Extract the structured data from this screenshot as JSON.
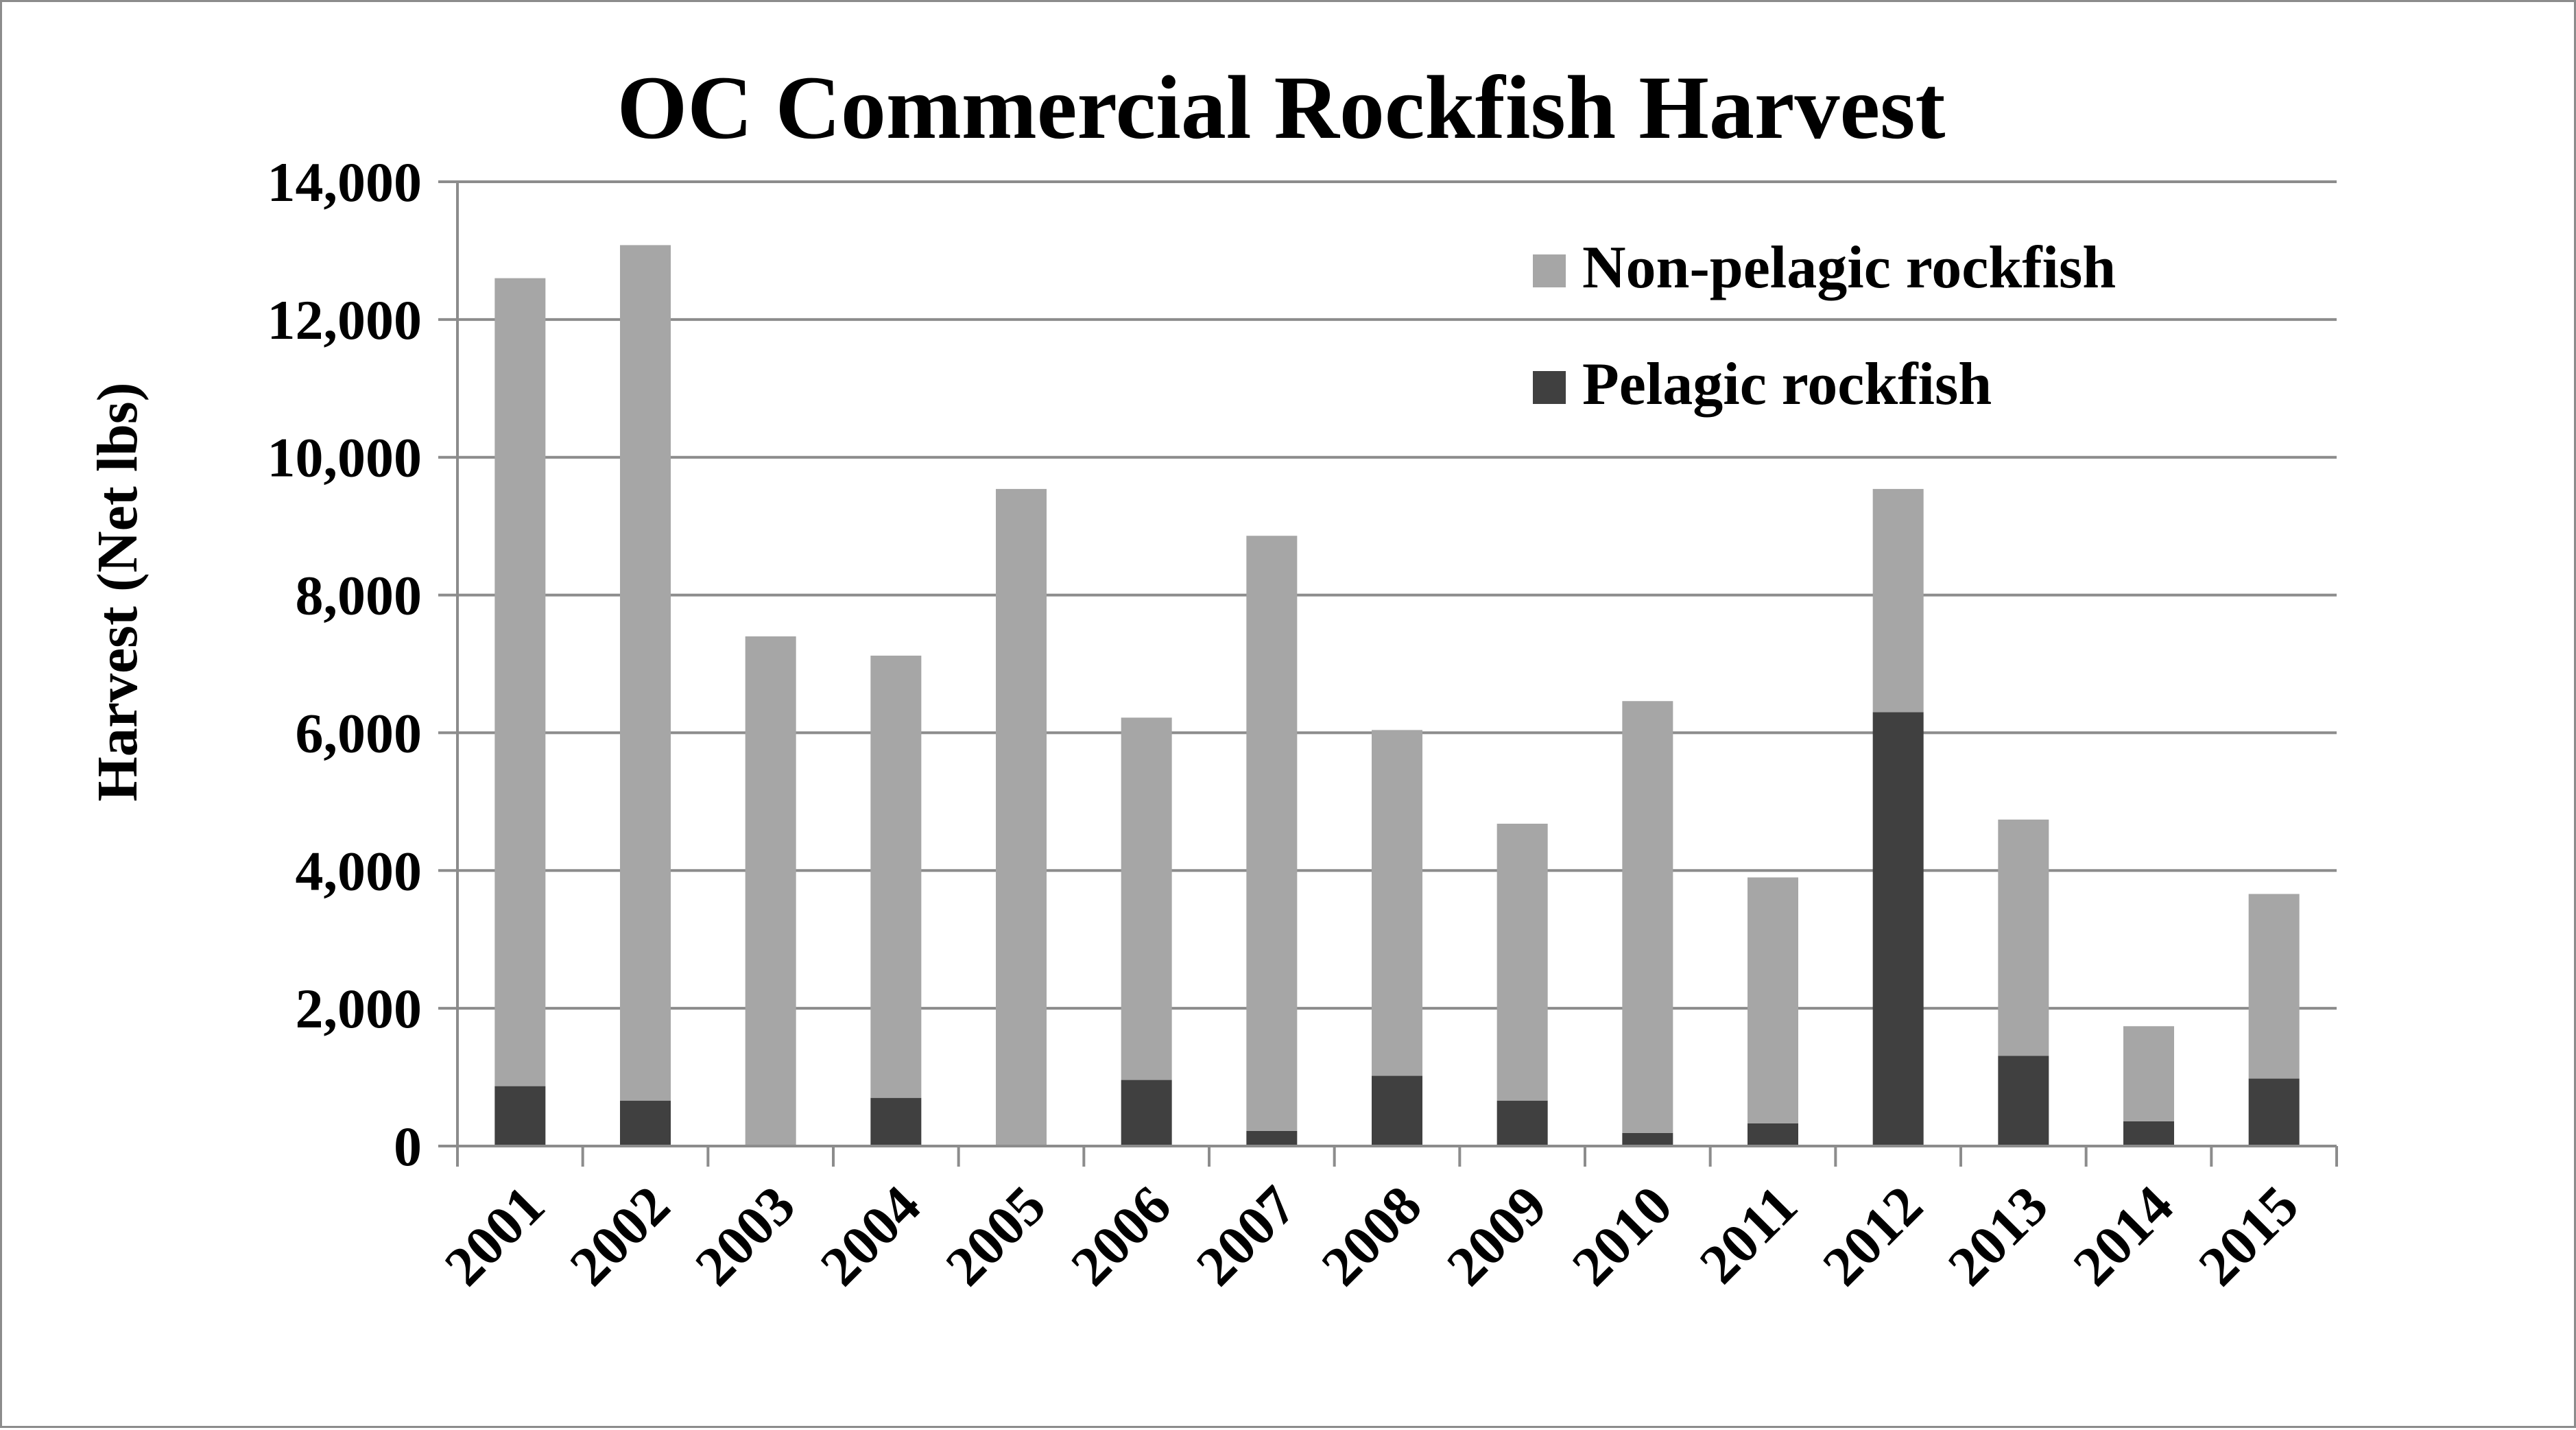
{
  "chart_data": {
    "type": "bar",
    "stacked": true,
    "title": "OC Commercial Rockfish Harvest",
    "xlabel": "",
    "ylabel": "Harvest (Net lbs)",
    "ylim": [
      0,
      14000
    ],
    "yticks": [
      "0",
      "2,000",
      "4,000",
      "6,000",
      "8,000",
      "10,000",
      "12,000",
      "14,000"
    ],
    "ytick_values": [
      0,
      2000,
      4000,
      6000,
      8000,
      10000,
      12000,
      14000
    ],
    "grid": true,
    "legend_position": "top-right",
    "categories": [
      "2001",
      "2002",
      "2003",
      "2004",
      "2005",
      "2006",
      "2007",
      "2008",
      "2009",
      "2010",
      "2011",
      "2012",
      "2013",
      "2014",
      "2015"
    ],
    "series": [
      {
        "name": "Pelagic rockfish",
        "color": "#404040",
        "values": [
          870,
          660,
          0,
          700,
          0,
          960,
          220,
          1020,
          660,
          190,
          330,
          6300,
          1310,
          360,
          980
        ]
      },
      {
        "name": "Non-pelagic rockfish",
        "color": "#a6a6a6",
        "values": [
          11730,
          12420,
          7400,
          6420,
          9540,
          5260,
          8640,
          5020,
          4020,
          6270,
          3570,
          3240,
          3430,
          1380,
          2680
        ]
      }
    ],
    "legend_order": [
      1,
      0
    ]
  }
}
